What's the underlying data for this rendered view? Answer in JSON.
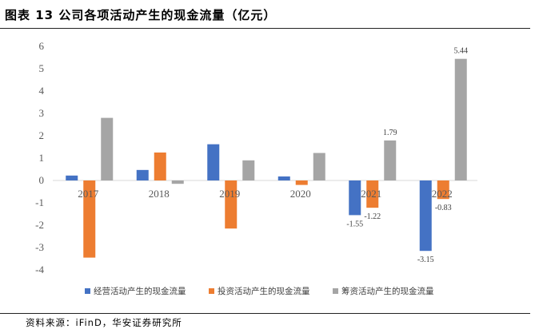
{
  "figure": {
    "title": "图表 13   公司各项活动产生的现金流量（亿元）",
    "source": "资料来源：iFinD，华安证券研究所"
  },
  "chart_data": {
    "type": "bar",
    "title": "公司各项活动产生的现金流量（亿元）",
    "categories": [
      "2017",
      "2018",
      "2019",
      "2020",
      "2021",
      "2022"
    ],
    "series": [
      {
        "name": "经营活动产生的现金流量",
        "color": "#4472C4",
        "values": [
          0.22,
          0.47,
          1.62,
          0.18,
          -1.55,
          -3.15
        ]
      },
      {
        "name": "投资活动产生的现金流量",
        "color": "#ED7D31",
        "values": [
          -3.45,
          1.25,
          -2.15,
          -0.2,
          -1.22,
          -0.83
        ]
      },
      {
        "name": "筹资活动产生的现金流量",
        "color": "#A5A5A5",
        "values": [
          2.8,
          -0.15,
          0.9,
          1.23,
          1.79,
          5.44
        ]
      }
    ],
    "data_labels": [
      {
        "series": 0,
        "category": "2021",
        "text": "-1.55"
      },
      {
        "series": 1,
        "category": "2021",
        "text": "-1.22"
      },
      {
        "series": 2,
        "category": "2021",
        "text": "1.79"
      },
      {
        "series": 0,
        "category": "2022",
        "text": "-3.15"
      },
      {
        "series": 1,
        "category": "2022",
        "text": "-0.83"
      },
      {
        "series": 2,
        "category": "2022",
        "text": "5.44"
      }
    ],
    "yticks": [
      "6",
      "5",
      "4",
      "3",
      "2",
      "1",
      "0",
      "-1",
      "-2",
      "-3",
      "-4"
    ],
    "ylim": [
      -4,
      6
    ],
    "xlabel": "",
    "ylabel": "",
    "grid": false,
    "legend": "bottom"
  }
}
